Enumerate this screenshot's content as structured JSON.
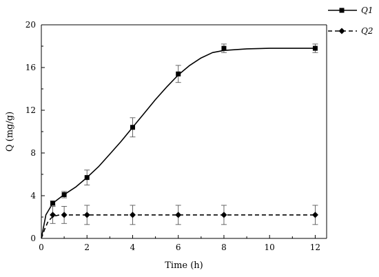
{
  "chart_data": {
    "type": "line",
    "xlabel": "Time (h)",
    "ylabel": "Q (mg/g)",
    "xlim": [
      0,
      12.5
    ],
    "ylim": [
      0,
      20
    ],
    "xticks": [
      "0",
      "2",
      "4",
      "6",
      "8",
      "10",
      "12"
    ],
    "yticks": [
      "0",
      "4",
      "8",
      "12",
      "16",
      "20"
    ],
    "grid": false,
    "legend_position": "top-right",
    "series": [
      {
        "name": "Q1",
        "marker": "square",
        "line_style": "solid",
        "x": [
          0.5,
          1,
          2,
          4,
          6,
          8,
          12
        ],
        "y": [
          3.3,
          4.1,
          5.7,
          10.4,
          15.4,
          17.8,
          17.8
        ],
        "error": [
          0.2,
          0.3,
          0.7,
          0.9,
          0.8,
          0.4,
          0.4
        ],
        "fit_curve": [
          [
            0,
            0
          ],
          [
            0.2,
            2.2
          ],
          [
            0.5,
            3.3
          ],
          [
            1,
            4.1
          ],
          [
            1.5,
            4.8
          ],
          [
            2,
            5.7
          ],
          [
            2.5,
            6.7
          ],
          [
            3,
            7.9
          ],
          [
            3.5,
            9.1
          ],
          [
            4,
            10.4
          ],
          [
            4.5,
            11.7
          ],
          [
            5,
            13.0
          ],
          [
            5.5,
            14.2
          ],
          [
            6,
            15.3
          ],
          [
            6.5,
            16.2
          ],
          [
            7,
            16.9
          ],
          [
            7.5,
            17.4
          ],
          [
            8,
            17.6
          ],
          [
            9,
            17.75
          ],
          [
            10,
            17.8
          ],
          [
            11,
            17.8
          ],
          [
            12,
            17.8
          ]
        ]
      },
      {
        "name": "Q2",
        "marker": "diamond",
        "line_style": "dashed",
        "x": [
          0.5,
          1,
          2,
          4,
          6,
          8,
          12
        ],
        "y": [
          2.2,
          2.2,
          2.2,
          2.2,
          2.2,
          2.2,
          2.2
        ],
        "error": [
          0.8,
          0.8,
          0.9,
          0.9,
          0.9,
          0.9,
          0.9
        ],
        "fit_curve": [
          [
            0,
            0
          ],
          [
            0.15,
            0.9
          ],
          [
            0.3,
            1.6
          ],
          [
            0.5,
            2.05
          ],
          [
            0.75,
            2.18
          ],
          [
            1,
            2.2
          ],
          [
            2,
            2.2
          ],
          [
            4,
            2.2
          ],
          [
            6,
            2.2
          ],
          [
            8,
            2.2
          ],
          [
            12,
            2.2
          ]
        ]
      }
    ]
  }
}
